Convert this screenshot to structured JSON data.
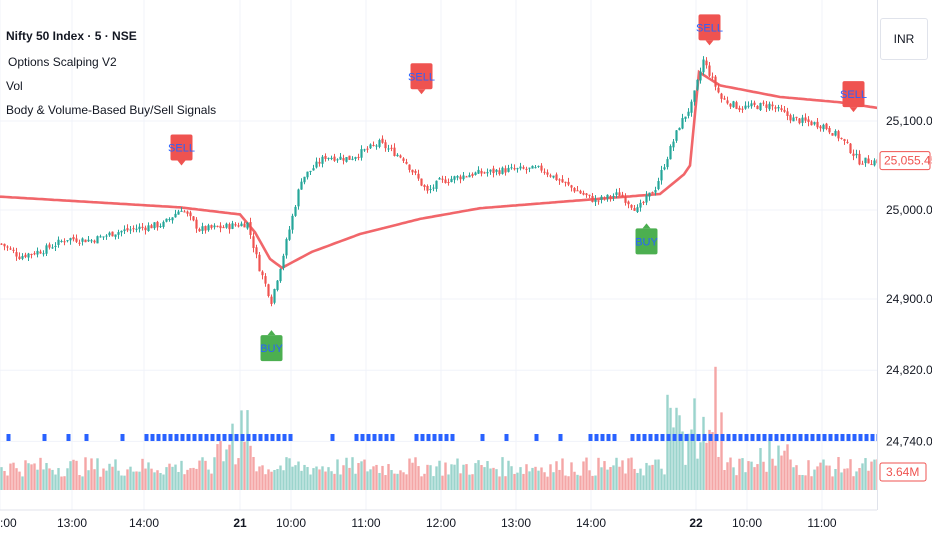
{
  "header": {
    "symbol_title": "Nifty 50 Index · 5 · NSE",
    "indicators": [
      "Options Scalping V2",
      "Vol",
      "Body & Volume-Based Buy/Sell Signals"
    ]
  },
  "currency_button": "INR",
  "colors": {
    "up": "#26a69a",
    "down": "#ef5350",
    "vwap": "#f0555a",
    "dots": "#2962ff",
    "vol_up": "#9bd4cc",
    "vol_down": "#f4a6a6",
    "buy_bg": "#4caf50",
    "sell_bg": "#ef5350",
    "signal_text": "#2962ff"
  },
  "chart_data": {
    "type": "candlestick",
    "instrument": "Nifty 50 Index",
    "interval": "5",
    "exchange": "NSE",
    "price_axis": {
      "ticks": [
        25100,
        25000,
        24900,
        24820,
        24740
      ],
      "tick_labels": [
        "25,100.00",
        "25,000.00",
        "24,900.00",
        "24,820.00",
        "24,740.00"
      ]
    },
    "last_price": "25,055.45",
    "last_volume": "3.64M",
    "time_axis": {
      "labels": [
        ":00",
        "13:00",
        "14:00",
        "21",
        "10:00",
        "11:00",
        "12:00",
        "13:00",
        "14:00",
        "22",
        "10:00",
        "11:00"
      ],
      "bold": [
        false,
        false,
        false,
        true,
        false,
        false,
        false,
        false,
        false,
        true,
        false,
        false
      ],
      "bar_index": [
        0,
        24,
        48,
        80,
        97,
        122,
        147,
        172,
        197,
        232,
        249,
        274
      ]
    },
    "signals": [
      {
        "text": "SELL",
        "type": "sell",
        "bar": 60,
        "price": 25050
      },
      {
        "text": "BUY",
        "type": "buy",
        "bar": 90,
        "price": 24865
      },
      {
        "text": "SELL",
        "type": "sell",
        "bar": 140,
        "price": 25130
      },
      {
        "text": "BUY",
        "type": "buy",
        "bar": 215,
        "price": 24985
      },
      {
        "text": "SELL",
        "type": "sell",
        "bar": 236,
        "price": 25185
      },
      {
        "text": "SELL",
        "type": "sell",
        "bar": 284,
        "price": 25110
      }
    ],
    "price_anchors": [
      [
        0,
        24962
      ],
      [
        6,
        24948
      ],
      [
        14,
        24955
      ],
      [
        22,
        24968
      ],
      [
        30,
        24966
      ],
      [
        38,
        24975
      ],
      [
        46,
        24980
      ],
      [
        54,
        24984
      ],
      [
        60,
        25002
      ],
      [
        66,
        24978
      ],
      [
        74,
        24981
      ],
      [
        82,
        24985
      ],
      [
        86,
        24935
      ],
      [
        90,
        24898
      ],
      [
        94,
        24950
      ],
      [
        100,
        25035
      ],
      [
        108,
        25060
      ],
      [
        116,
        25058
      ],
      [
        126,
        25075
      ],
      [
        134,
        25058
      ],
      [
        142,
        25020
      ],
      [
        146,
        25032
      ],
      [
        156,
        25040
      ],
      [
        168,
        25045
      ],
      [
        180,
        25046
      ],
      [
        190,
        25025
      ],
      [
        198,
        25010
      ],
      [
        206,
        25018
      ],
      [
        212,
        25000
      ],
      [
        218,
        25025
      ],
      [
        226,
        25095
      ],
      [
        230,
        25118
      ],
      [
        234,
        25168
      ],
      [
        240,
        25125
      ],
      [
        246,
        25115
      ],
      [
        256,
        25118
      ],
      [
        264,
        25102
      ],
      [
        274,
        25095
      ],
      [
        280,
        25080
      ],
      [
        286,
        25055
      ],
      [
        292,
        25055
      ]
    ],
    "vwap_anchors": [
      [
        0,
        25015
      ],
      [
        20,
        25011
      ],
      [
        40,
        25007
      ],
      [
        60,
        25003
      ],
      [
        80,
        24995
      ],
      [
        85,
        24975
      ],
      [
        90,
        24945
      ],
      [
        94,
        24935
      ],
      [
        104,
        24953
      ],
      [
        120,
        24973
      ],
      [
        140,
        24990
      ],
      [
        160,
        25002
      ],
      [
        190,
        25010
      ],
      [
        220,
        25018
      ],
      [
        228,
        25040
      ],
      [
        230,
        25050
      ],
      [
        233,
        25155
      ],
      [
        240,
        25140
      ],
      [
        260,
        25127
      ],
      [
        280,
        25121
      ],
      [
        294,
        25114
      ]
    ],
    "volume_max": "approx",
    "volume_bursts": [
      [
        72,
        84,
        2.2
      ],
      [
        222,
        240,
        2.6
      ],
      [
        250,
        262,
        1.6
      ]
    ],
    "dot_ranges": [
      [
        2,
        2
      ],
      [
        14,
        14
      ],
      [
        22,
        22
      ],
      [
        28,
        28
      ],
      [
        40,
        40
      ],
      [
        48,
        96
      ],
      [
        110,
        110
      ],
      [
        118,
        130
      ],
      [
        138,
        150
      ],
      [
        160,
        160
      ],
      [
        168,
        168
      ],
      [
        178,
        178
      ],
      [
        186,
        186
      ],
      [
        196,
        205
      ],
      [
        210,
        292
      ]
    ]
  }
}
